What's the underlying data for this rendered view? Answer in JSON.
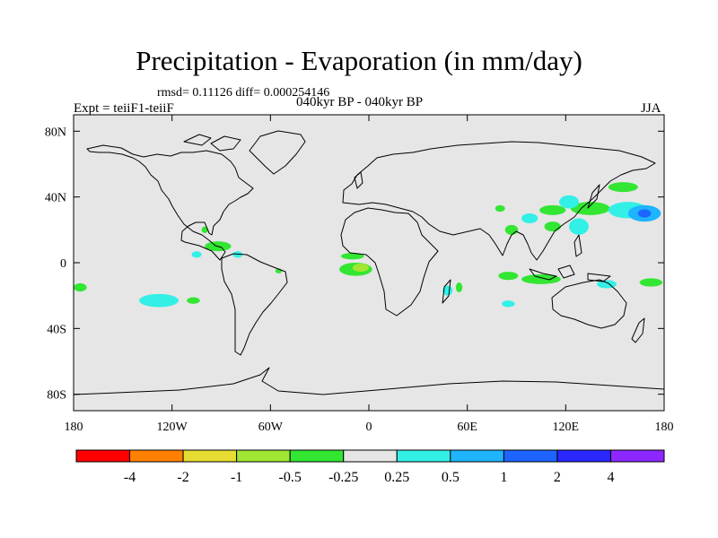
{
  "title": "Precipitation - Evaporation (in mm/day)",
  "stats_line": "rmsd= 0.11126 diff= 0.000254146",
  "period_line": "040kyr BP - 040kyr BP",
  "experiment_label": "Expt = teiiF1-teiiF",
  "season_label": "JJA",
  "map": {
    "lon_range": [
      -180,
      180
    ],
    "lat_range": [
      -90,
      90
    ],
    "background_color": "#e6e6e6",
    "lon_ticks": [
      {
        "value": -180,
        "label": "180"
      },
      {
        "value": -120,
        "label": "120W"
      },
      {
        "value": -60,
        "label": "60W"
      },
      {
        "value": 0,
        "label": "0"
      },
      {
        "value": 60,
        "label": "60E"
      },
      {
        "value": 120,
        "label": "120E"
      },
      {
        "value": 180,
        "label": "180"
      }
    ],
    "lat_ticks": [
      {
        "value": 80,
        "label": "80N"
      },
      {
        "value": 40,
        "label": "40N"
      },
      {
        "value": 0,
        "label": "0"
      },
      {
        "value": -40,
        "label": "40S"
      },
      {
        "value": -80,
        "label": "80S"
      }
    ]
  },
  "colorbar": {
    "colors": [
      "#ff0000",
      "#ff8000",
      "#e6dc32",
      "#a0e632",
      "#32e632",
      "#e6e6e6",
      "#32f0e6",
      "#1eb4ff",
      "#1e64ff",
      "#2828ff",
      "#8c28ff"
    ],
    "labels": [
      "-4",
      "-2",
      "-1",
      "-0.5",
      "-0.25",
      "0.25",
      "0.5",
      "1",
      "2",
      "4"
    ]
  },
  "anomalies": [
    {
      "lon": 112,
      "lat": 32,
      "rx": 8,
      "ry": 3,
      "color": "#32e632"
    },
    {
      "lon": 135,
      "lat": 33,
      "rx": 12,
      "ry": 4,
      "color": "#32e632"
    },
    {
      "lon": 158,
      "lat": 32,
      "rx": 12,
      "ry": 5,
      "color": "#32f0e6"
    },
    {
      "lon": 168,
      "lat": 30,
      "rx": 10,
      "ry": 5,
      "color": "#1eb4ff"
    },
    {
      "lon": 168,
      "lat": 30,
      "rx": 4,
      "ry": 2.5,
      "color": "#1e64ff"
    },
    {
      "lon": 155,
      "lat": 46,
      "rx": 9,
      "ry": 3,
      "color": "#32e632"
    },
    {
      "lon": 122,
      "lat": 37,
      "rx": 6,
      "ry": 4,
      "color": "#32f0e6"
    },
    {
      "lon": 128,
      "lat": 22,
      "rx": 6,
      "ry": 5,
      "color": "#32f0e6"
    },
    {
      "lon": 112,
      "lat": 22,
      "rx": 5,
      "ry": 3,
      "color": "#32e632"
    },
    {
      "lon": 98,
      "lat": 27,
      "rx": 5,
      "ry": 3,
      "color": "#32f0e6"
    },
    {
      "lon": 87,
      "lat": 20,
      "rx": 4,
      "ry": 3,
      "color": "#32e632"
    },
    {
      "lon": 80,
      "lat": 33,
      "rx": 3,
      "ry": 2,
      "color": "#32e632"
    },
    {
      "lon": 85,
      "lat": -8,
      "rx": 6,
      "ry": 2.5,
      "color": "#32e632"
    },
    {
      "lon": 105,
      "lat": -10,
      "rx": 12,
      "ry": 3,
      "color": "#32e632"
    },
    {
      "lon": 145,
      "lat": -13,
      "rx": 6,
      "ry": 2.5,
      "color": "#32f0e6"
    },
    {
      "lon": 172,
      "lat": -12,
      "rx": 7,
      "ry": 2.5,
      "color": "#32e632"
    },
    {
      "lon": 85,
      "lat": -25,
      "rx": 4,
      "ry": 2,
      "color": "#32f0e6"
    },
    {
      "lon": -8,
      "lat": -4,
      "rx": 10,
      "ry": 4,
      "color": "#32e632"
    },
    {
      "lon": -5,
      "lat": -3,
      "rx": 5,
      "ry": 2.5,
      "color": "#a0e632"
    },
    {
      "lon": -10,
      "lat": 4,
      "rx": 7,
      "ry": 2,
      "color": "#32e632"
    },
    {
      "lon": -92,
      "lat": 10,
      "rx": 8,
      "ry": 3,
      "color": "#32e632"
    },
    {
      "lon": -80,
      "lat": 5,
      "rx": 3,
      "ry": 2,
      "color": "#32f0e6"
    },
    {
      "lon": -105,
      "lat": 5,
      "rx": 3,
      "ry": 2,
      "color": "#32f0e6"
    },
    {
      "lon": -128,
      "lat": -23,
      "rx": 12,
      "ry": 4,
      "color": "#32f0e6"
    },
    {
      "lon": -107,
      "lat": -23,
      "rx": 4,
      "ry": 2,
      "color": "#32e632"
    },
    {
      "lon": -176,
      "lat": -15,
      "rx": 4,
      "ry": 2.5,
      "color": "#32e632"
    },
    {
      "lon": 48,
      "lat": -17,
      "rx": 3,
      "ry": 3,
      "color": "#32f0e6"
    },
    {
      "lon": 55,
      "lat": -15,
      "rx": 2,
      "ry": 3,
      "color": "#32e632"
    },
    {
      "lon": -100,
      "lat": 20,
      "rx": 2,
      "ry": 2,
      "color": "#32e632"
    },
    {
      "lon": -55,
      "lat": -5,
      "rx": 2,
      "ry": 1.5,
      "color": "#32e632"
    }
  ]
}
